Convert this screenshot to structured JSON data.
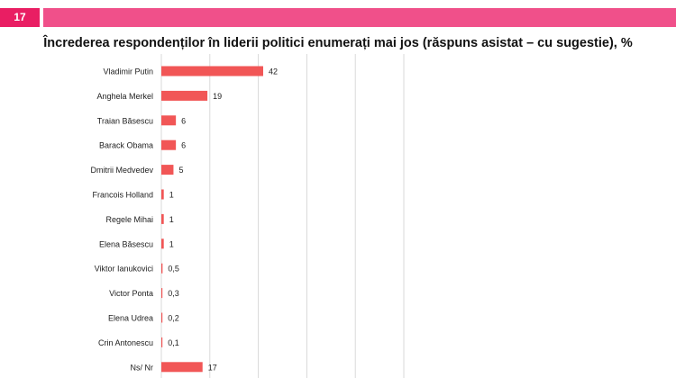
{
  "slide_number": "17",
  "colors": {
    "accent": "#e91e63",
    "header_stripe": "#f0508a",
    "bar": "#f15656",
    "grid": "#d9d9d9"
  },
  "chart_data": {
    "type": "bar",
    "orientation": "horizontal",
    "title": "Încrederea respondenților în liderii politici enumerați mai jos (răspuns asistat – cu sugestie), %",
    "categories": [
      "Vladimir Putin",
      "Anghela Merkel",
      "Traian Băsescu",
      "Barack Obama",
      "Dmitrii Medvedev",
      "Francois Holland",
      "Regele Mihai",
      "Elena Băsescu",
      "Viktor Ianukovici",
      "Victor Ponta",
      "Elena Udrea",
      "Crin Antonescu",
      "Ns/ Nr"
    ],
    "values": [
      42,
      19,
      6,
      6,
      5,
      1,
      1,
      1,
      0.5,
      0.3,
      0.2,
      0.1,
      17
    ],
    "value_labels": [
      "42",
      "19",
      "6",
      "6",
      "5",
      "1",
      "1",
      "1",
      "0,5",
      "0,3",
      "0,2",
      "0,1",
      "17"
    ],
    "xlim": [
      0,
      100
    ],
    "grid": true,
    "legend": false
  }
}
